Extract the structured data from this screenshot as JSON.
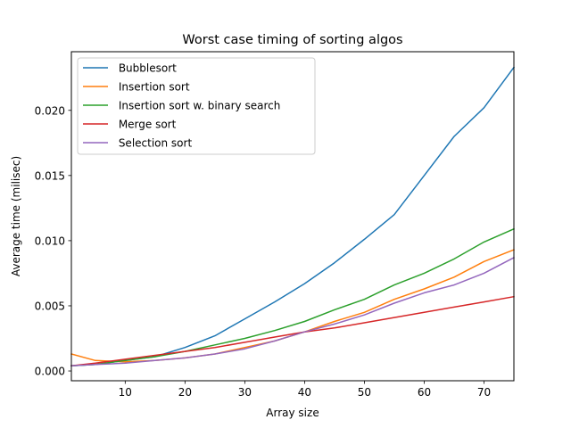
{
  "chart_data": {
    "type": "line",
    "title": "Worst case timing of sorting algos",
    "xlabel": "Array size",
    "ylabel": "Average time (milisec)",
    "xlim": [
      1,
      75
    ],
    "ylim": [
      -0.00075,
      0.0245
    ],
    "xticks": [
      10,
      20,
      30,
      40,
      50,
      60,
      70
    ],
    "xtick_labels": [
      "10",
      "20",
      "30",
      "40",
      "50",
      "60",
      "70"
    ],
    "yticks": [
      0.0,
      0.005,
      0.01,
      0.015,
      0.02
    ],
    "ytick_labels": [
      "0.000",
      "0.005",
      "0.010",
      "0.015",
      "0.020"
    ],
    "grid": false,
    "legend_position": "top-left",
    "x": [
      1,
      5,
      10,
      15,
      20,
      25,
      30,
      35,
      40,
      45,
      50,
      55,
      60,
      65,
      70,
      75
    ],
    "series": [
      {
        "name": " Bubblesort",
        "color": "#1f77b4",
        "values": [
          0.0004,
          0.0005,
          0.0008,
          0.0011,
          0.0018,
          0.0027,
          0.004,
          0.0053,
          0.0067,
          0.0083,
          0.0101,
          0.012,
          0.015,
          0.018,
          0.0202,
          0.0233
        ]
      },
      {
        "name": " Insertion sort",
        "color": "#ff7f0e",
        "values": [
          0.0013,
          0.0008,
          0.0007,
          0.0008,
          0.001,
          0.0013,
          0.0018,
          0.0023,
          0.003,
          0.0038,
          0.0045,
          0.0055,
          0.0063,
          0.0072,
          0.0084,
          0.0093
        ]
      },
      {
        "name": " Insertion sort w. binary search",
        "color": "#2ca02c",
        "values": [
          0.0004,
          0.0005,
          0.0008,
          0.0011,
          0.0015,
          0.002,
          0.0025,
          0.0031,
          0.0038,
          0.0047,
          0.0055,
          0.0066,
          0.0075,
          0.0086,
          0.0099,
          0.0109
        ]
      },
      {
        "name": " Merge sort",
        "color": "#d62728",
        "values": [
          0.0004,
          0.0006,
          0.0009,
          0.0012,
          0.0015,
          0.0018,
          0.0022,
          0.0026,
          0.003,
          0.0033,
          0.0037,
          0.0041,
          0.0045,
          0.0049,
          0.0053,
          0.0057
        ]
      },
      {
        "name": " Selection sort",
        "color": "#9467bd",
        "values": [
          0.0004,
          0.0005,
          0.0006,
          0.0008,
          0.001,
          0.0013,
          0.0017,
          0.0023,
          0.003,
          0.0036,
          0.0043,
          0.0052,
          0.006,
          0.0066,
          0.0075,
          0.0087
        ]
      }
    ]
  }
}
